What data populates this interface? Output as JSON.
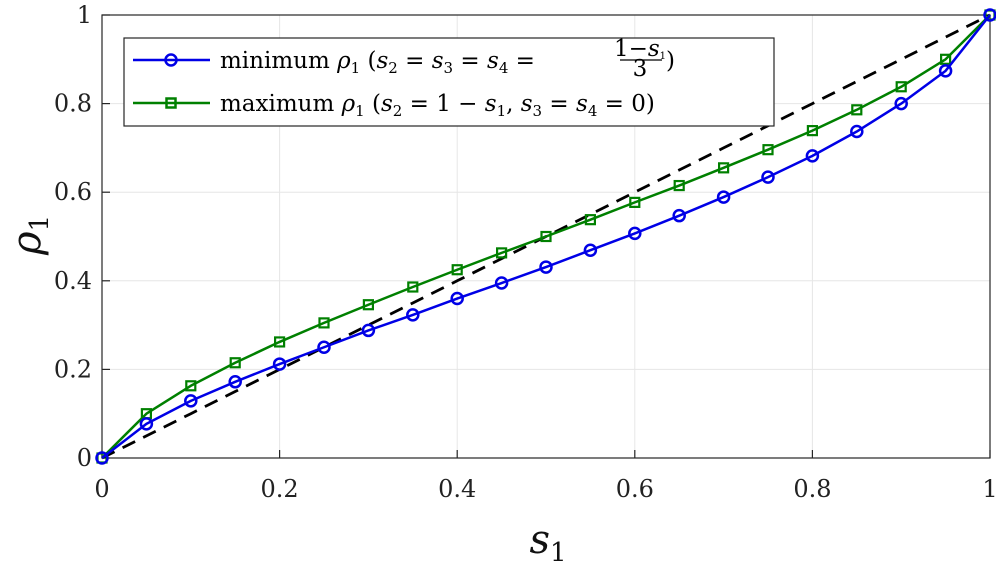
{
  "chart_data": {
    "type": "line",
    "xlabel": "s1",
    "ylabel": "ρ1",
    "xlim": [
      0,
      1
    ],
    "ylim": [
      0,
      1
    ],
    "grid": true,
    "legend_placement": "top-left",
    "x_ticks": [
      "0",
      "0.2",
      "0.4",
      "0.6",
      "0.8",
      "1"
    ],
    "y_ticks": [
      "0",
      "0.2",
      "0.4",
      "0.6",
      "0.8",
      "1"
    ],
    "x": [
      0,
      0.05,
      0.1,
      0.15,
      0.2,
      0.25,
      0.3,
      0.35,
      0.4,
      0.45,
      0.5,
      0.55,
      0.6,
      0.65,
      0.7,
      0.75,
      0.8,
      0.85,
      0.9,
      0.95,
      1.0
    ],
    "series": [
      {
        "name": "minimum ρ1 (s2 = s3 = s4 = (1−s1)/3)",
        "color": "#0000e6",
        "marker": "circle",
        "values": [
          0,
          0.077,
          0.129,
          0.172,
          0.212,
          0.25,
          0.288,
          0.323,
          0.36,
          0.395,
          0.431,
          0.469,
          0.507,
          0.547,
          0.589,
          0.634,
          0.682,
          0.737,
          0.8,
          0.874,
          1.0
        ]
      },
      {
        "name": "maximum ρ1 (s2 = 1 − s1, s3 = s4 = 0)",
        "color": "#008000",
        "marker": "square",
        "values": [
          0,
          0.1,
          0.163,
          0.215,
          0.262,
          0.305,
          0.346,
          0.386,
          0.425,
          0.463,
          0.5,
          0.538,
          0.577,
          0.615,
          0.655,
          0.696,
          0.739,
          0.786,
          0.838,
          0.9,
          1.0
        ]
      },
      {
        "name": "",
        "color": "#000000",
        "style": "dashed",
        "values": [
          0,
          0.05,
          0.1,
          0.15,
          0.2,
          0.25,
          0.3,
          0.35,
          0.4,
          0.45,
          0.5,
          0.55,
          0.6,
          0.65,
          0.7,
          0.75,
          0.8,
          0.85,
          0.9,
          0.95,
          1.0
        ]
      }
    ]
  },
  "legend": {
    "min_word": "minimum",
    "max_word": "maximum",
    "rho": "ρ",
    "sub1": "1",
    "min_cond_open": "(",
    "min_s2": "s",
    "min_s2_sub": "2",
    "min_eq1": " = ",
    "min_s3": "s",
    "min_s3_sub": "3",
    "min_eq2": " = ",
    "min_s4": "s",
    "min_s4_sub": "4",
    "min_eq3": " = ",
    "frac_num_1": "1−",
    "frac_num_s": "s",
    "frac_num_sub": "1",
    "frac_den": "3",
    "min_cond_close": ")",
    "max_cond_open": "(",
    "max_s2": "s",
    "max_s2_sub": "2",
    "max_eq1": " = 1 − ",
    "max_s1": "s",
    "max_s1_sub": "1",
    "max_comma": ", ",
    "max_s3": "s",
    "max_s3_sub": "3",
    "max_eq2": " = ",
    "max_s4": "s",
    "max_s4_sub": "4",
    "max_eq3": " = 0)"
  },
  "axes": {
    "x_base": "s",
    "x_sub": "1",
    "y_base": "ρ",
    "y_sub": "1"
  }
}
